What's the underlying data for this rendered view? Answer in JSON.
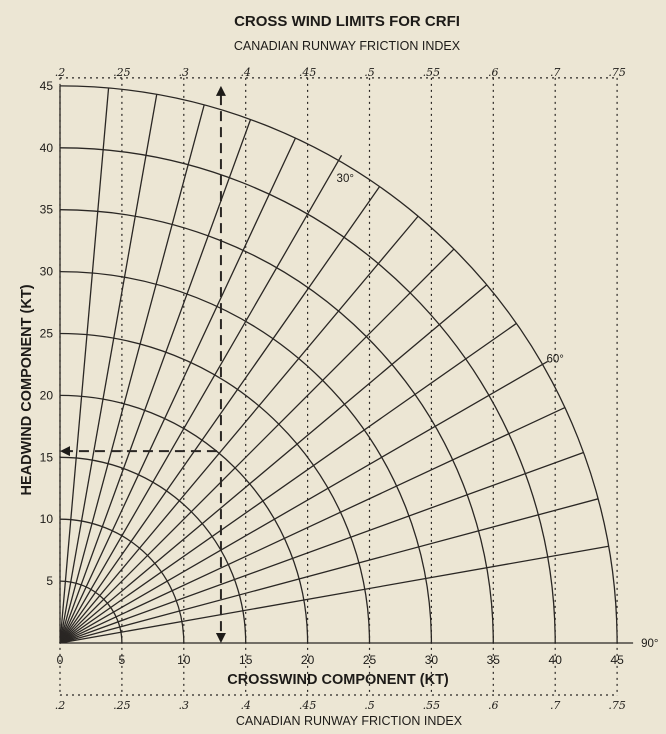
{
  "chart_data": {
    "type": "polar-wind-component",
    "title": "CROSS WIND LIMITS FOR CRFI",
    "top_subtitle": "CANADIAN RUNWAY FRICTION INDEX",
    "bottom_subtitle": "CANADIAN RUNWAY FRICTION INDEX",
    "xlabel": "CROSSWIND COMPONENT (KT)",
    "ylabel": "HEADWIND COMPONENT (KT)",
    "xlim": [
      0,
      45
    ],
    "ylim": [
      0,
      45
    ],
    "x_ticks": [
      "0",
      "5",
      "10",
      "15",
      "20",
      "25",
      "30",
      "35",
      "40",
      "45"
    ],
    "y_ticks": [
      "5",
      "10",
      "15",
      "20",
      "25",
      "30",
      "35",
      "40",
      "45"
    ],
    "wind_speed_arcs_kt": [
      5,
      10,
      15,
      20,
      25,
      30,
      35,
      40,
      45
    ],
    "direction_rays_deg": [
      5,
      10,
      15,
      20,
      25,
      30,
      35,
      40,
      45,
      50,
      55,
      60,
      65,
      70,
      75,
      80
    ],
    "angle_labels": [
      {
        "deg": 30,
        "text": "30°"
      },
      {
        "deg": 60,
        "text": "60°"
      },
      {
        "deg": 90,
        "text": "90°"
      }
    ],
    "crfi_index": [
      {
        "label": ".2",
        "crosswind_limit_kt": 0
      },
      {
        "label": ".25",
        "crosswind_limit_kt": 5
      },
      {
        "label": ".3",
        "crosswind_limit_kt": 10
      },
      {
        "label": ".4",
        "crosswind_limit_kt": 15
      },
      {
        "label": ".45",
        "crosswind_limit_kt": 20
      },
      {
        "label": ".5",
        "crosswind_limit_kt": 25
      },
      {
        "label": ".55",
        "crosswind_limit_kt": 30
      },
      {
        "label": ".6",
        "crosswind_limit_kt": 35
      },
      {
        "label": ".7",
        "crosswind_limit_kt": 40
      },
      {
        "label": ".75",
        "crosswind_limit_kt": 45
      }
    ],
    "example": {
      "crfi": ".4",
      "crosswind_kt": 13,
      "headwind_kt": 15.5
    }
  }
}
